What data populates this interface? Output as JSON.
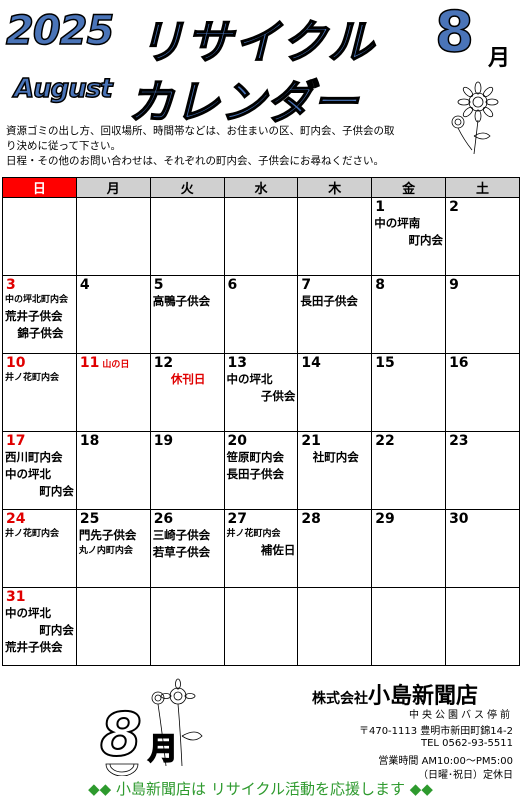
{
  "header": {
    "year": "2025",
    "month_en": "August",
    "title_line1": "リサイクル",
    "title_line2": "カレンダー",
    "month_num": "8",
    "month_kanji": "月"
  },
  "notes": [
    "資源ゴミの出し方、回収場所、時間帯などは、お住まいの区、町内会、子供会の取",
    "り決めに従って下さい。",
    "日程・その他のお問い合わせは、それぞれの町内会、子供会にお尋ねください。"
  ],
  "weekdays": [
    "日",
    "月",
    "火",
    "水",
    "木",
    "金",
    "土"
  ],
  "days": {
    "d1": "1",
    "d1_e1": "中の坪南",
    "d1_e2": "町内会",
    "d2": "2",
    "d3": "3",
    "d3_e1": "中の坪北町内会",
    "d3_e2": "荒井子供会",
    "d3_e3": "錦子供会",
    "d4": "4",
    "d5": "5",
    "d5_e1": "高鴨子供会",
    "d6": "6",
    "d7": "7",
    "d7_e1": "長田子供会",
    "d8": "8",
    "d9": "9",
    "d10": "10",
    "d10_e1": "井ノ花町内会",
    "d11": "11",
    "d11_holiday": "山の日",
    "d12": "12",
    "d12_e1": "休刊日",
    "d13": "13",
    "d13_e1": "中の坪北",
    "d13_e2": "子供会",
    "d14": "14",
    "d15": "15",
    "d16": "16",
    "d17": "17",
    "d17_e1": "西川町内会",
    "d17_e2": "中の坪北",
    "d17_e3": "町内会",
    "d18": "18",
    "d19": "19",
    "d20": "20",
    "d20_e1": "笹原町内会",
    "d20_e2": "長田子供会",
    "d21": "21",
    "d21_e1": "社町内会",
    "d22": "22",
    "d23": "23",
    "d24": "24",
    "d24_e1": "井ノ花町内会",
    "d25": "25",
    "d25_e1": "門先子供会",
    "d25_e2": "丸ノ内町内会",
    "d26": "26",
    "d26_e1": "三崎子供会",
    "d26_e2": "若草子供会",
    "d27": "27",
    "d27_e1": "井ノ花町内会",
    "d27_e2": "補佐日",
    "d28": "28",
    "d29": "29",
    "d30": "30",
    "d31": "31",
    "d31_e1": "中の坪北",
    "d31_e2": "町内会",
    "d31_e3": "荒井子供会"
  },
  "footer": {
    "company_prefix": "株式会社",
    "company_name": "小島新聞店",
    "bus_stop": "中央公園バス停前",
    "address": "〒470-1113 豊明市新田町錦14-2",
    "tel": "TEL 0562-93-5511",
    "hours": "営業時間 AM10:00～PM5:00",
    "closed": "（日曜･祝日）定休日",
    "big_num": "8",
    "big_kanji": "月",
    "slogan": "小島新聞店は リサイクル活動を応援します",
    "diamonds": "◆◆"
  },
  "colors": {
    "title_blue": "#4a74b8",
    "sunday_red": "#ff0000",
    "slogan_green": "#2e9a2e",
    "header_gray": "#d0d0d0"
  }
}
